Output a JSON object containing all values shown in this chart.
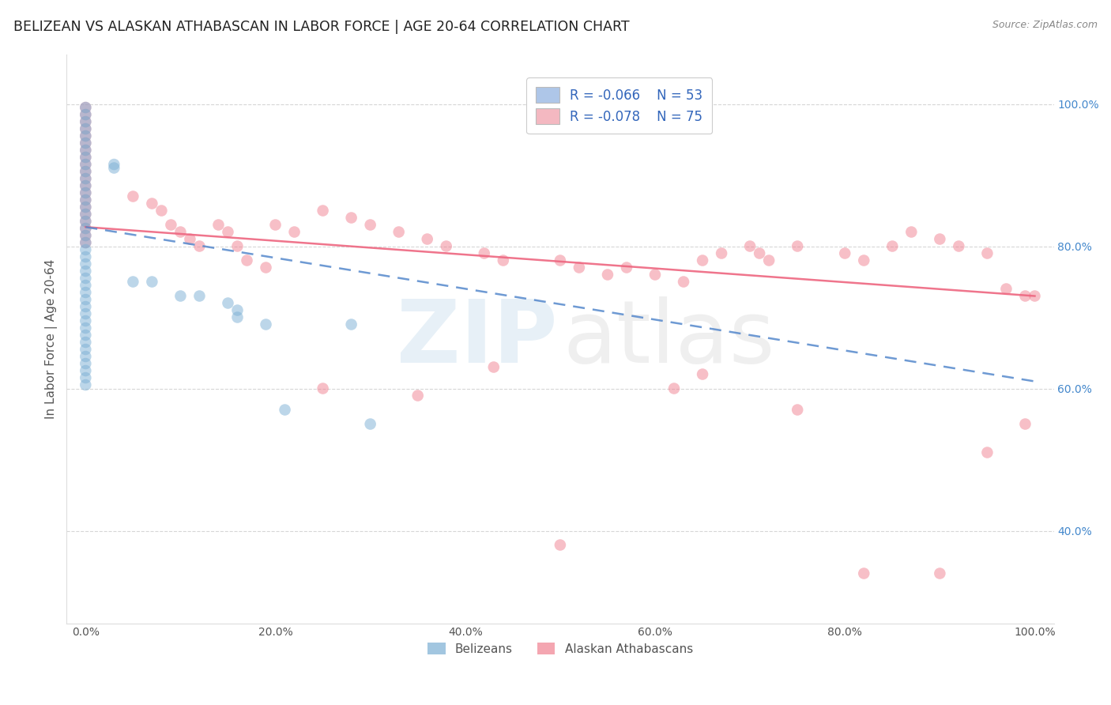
{
  "title": "BELIZEAN VS ALASKAN ATHABASCAN IN LABOR FORCE | AGE 20-64 CORRELATION CHART",
  "source_text": "Source: ZipAtlas.com",
  "ylabel": "In Labor Force | Age 20-64",
  "xlim": [
    -0.02,
    1.02
  ],
  "ylim": [
    0.27,
    1.07
  ],
  "x_tick_labels": [
    "0.0%",
    "20.0%",
    "40.0%",
    "60.0%",
    "80.0%",
    "100.0%"
  ],
  "x_tick_vals": [
    0.0,
    0.2,
    0.4,
    0.6,
    0.8,
    1.0
  ],
  "y_tick_labels": [
    "40.0%",
    "60.0%",
    "80.0%",
    "100.0%"
  ],
  "y_tick_vals": [
    0.4,
    0.6,
    0.8,
    1.0
  ],
  "legend_label_bel": "R = -0.066    N = 53",
  "legend_label_ala": "R = -0.078    N = 75",
  "legend_color_bel": "#aec6e8",
  "legend_color_ala": "#f4b8c1",
  "belizean_color": "#7bafd4",
  "alaskan_color": "#f08090",
  "belizean_line_color": "#5588cc",
  "alaskan_line_color": "#ee6680",
  "marker_size": 110,
  "marker_alpha": 0.5,
  "grid_color": "#cccccc",
  "background_color": "#ffffff",
  "title_color": "#222222",
  "tick_color_x": "#555555",
  "tick_color_y": "#4488cc",
  "source_color": "#888888",
  "bel_x": [
    0.0,
    0.0,
    0.0,
    0.0,
    0.0,
    0.0,
    0.0,
    0.0,
    0.0,
    0.0,
    0.0,
    0.0,
    0.0,
    0.0,
    0.0,
    0.0,
    0.0,
    0.0,
    0.0,
    0.0,
    0.0,
    0.0,
    0.0,
    0.0,
    0.0,
    0.0,
    0.0,
    0.0,
    0.0,
    0.0,
    0.0,
    0.0,
    0.0,
    0.0,
    0.0,
    0.0,
    0.0,
    0.0,
    0.0,
    0.0,
    0.03,
    0.03,
    0.05,
    0.07,
    0.1,
    0.12,
    0.15,
    0.16,
    0.16,
    0.19,
    0.21,
    0.28,
    0.3
  ],
  "bel_y": [
    0.995,
    0.985,
    0.975,
    0.965,
    0.955,
    0.945,
    0.935,
    0.925,
    0.915,
    0.905,
    0.895,
    0.885,
    0.875,
    0.865,
    0.855,
    0.845,
    0.835,
    0.825,
    0.815,
    0.805,
    0.795,
    0.785,
    0.775,
    0.765,
    0.755,
    0.745,
    0.735,
    0.725,
    0.715,
    0.705,
    0.695,
    0.685,
    0.675,
    0.665,
    0.655,
    0.645,
    0.635,
    0.625,
    0.615,
    0.605,
    0.91,
    0.915,
    0.75,
    0.75,
    0.73,
    0.73,
    0.72,
    0.71,
    0.7,
    0.69,
    0.57,
    0.69,
    0.55
  ],
  "ala_x": [
    0.0,
    0.0,
    0.0,
    0.0,
    0.0,
    0.0,
    0.0,
    0.0,
    0.0,
    0.0,
    0.0,
    0.0,
    0.0,
    0.0,
    0.0,
    0.0,
    0.0,
    0.0,
    0.0,
    0.0,
    0.05,
    0.07,
    0.08,
    0.09,
    0.1,
    0.11,
    0.12,
    0.14,
    0.15,
    0.16,
    0.17,
    0.19,
    0.2,
    0.22,
    0.25,
    0.28,
    0.3,
    0.33,
    0.36,
    0.38,
    0.42,
    0.44,
    0.5,
    0.52,
    0.55,
    0.57,
    0.6,
    0.63,
    0.65,
    0.67,
    0.7,
    0.71,
    0.72,
    0.75,
    0.8,
    0.82,
    0.85,
    0.87,
    0.9,
    0.92,
    0.95,
    0.97,
    0.99,
    1.0,
    0.25,
    0.35,
    0.43,
    0.5,
    0.62,
    0.65,
    0.75,
    0.82,
    0.9,
    0.95,
    0.99
  ],
  "ala_y": [
    0.995,
    0.985,
    0.975,
    0.965,
    0.955,
    0.945,
    0.935,
    0.925,
    0.915,
    0.905,
    0.895,
    0.885,
    0.875,
    0.865,
    0.855,
    0.845,
    0.835,
    0.825,
    0.815,
    0.805,
    0.87,
    0.86,
    0.85,
    0.83,
    0.82,
    0.81,
    0.8,
    0.83,
    0.82,
    0.8,
    0.78,
    0.77,
    0.83,
    0.82,
    0.85,
    0.84,
    0.83,
    0.82,
    0.81,
    0.8,
    0.79,
    0.78,
    0.78,
    0.77,
    0.76,
    0.77,
    0.76,
    0.75,
    0.78,
    0.79,
    0.8,
    0.79,
    0.78,
    0.8,
    0.79,
    0.78,
    0.8,
    0.82,
    0.81,
    0.8,
    0.79,
    0.74,
    0.73,
    0.73,
    0.6,
    0.59,
    0.63,
    0.38,
    0.6,
    0.62,
    0.57,
    0.34,
    0.34,
    0.51,
    0.55
  ],
  "bel_line_x": [
    0.0,
    1.0
  ],
  "bel_line_y": [
    0.827,
    0.61
  ],
  "ala_line_x": [
    0.0,
    1.0
  ],
  "ala_line_y": [
    0.827,
    0.73
  ]
}
